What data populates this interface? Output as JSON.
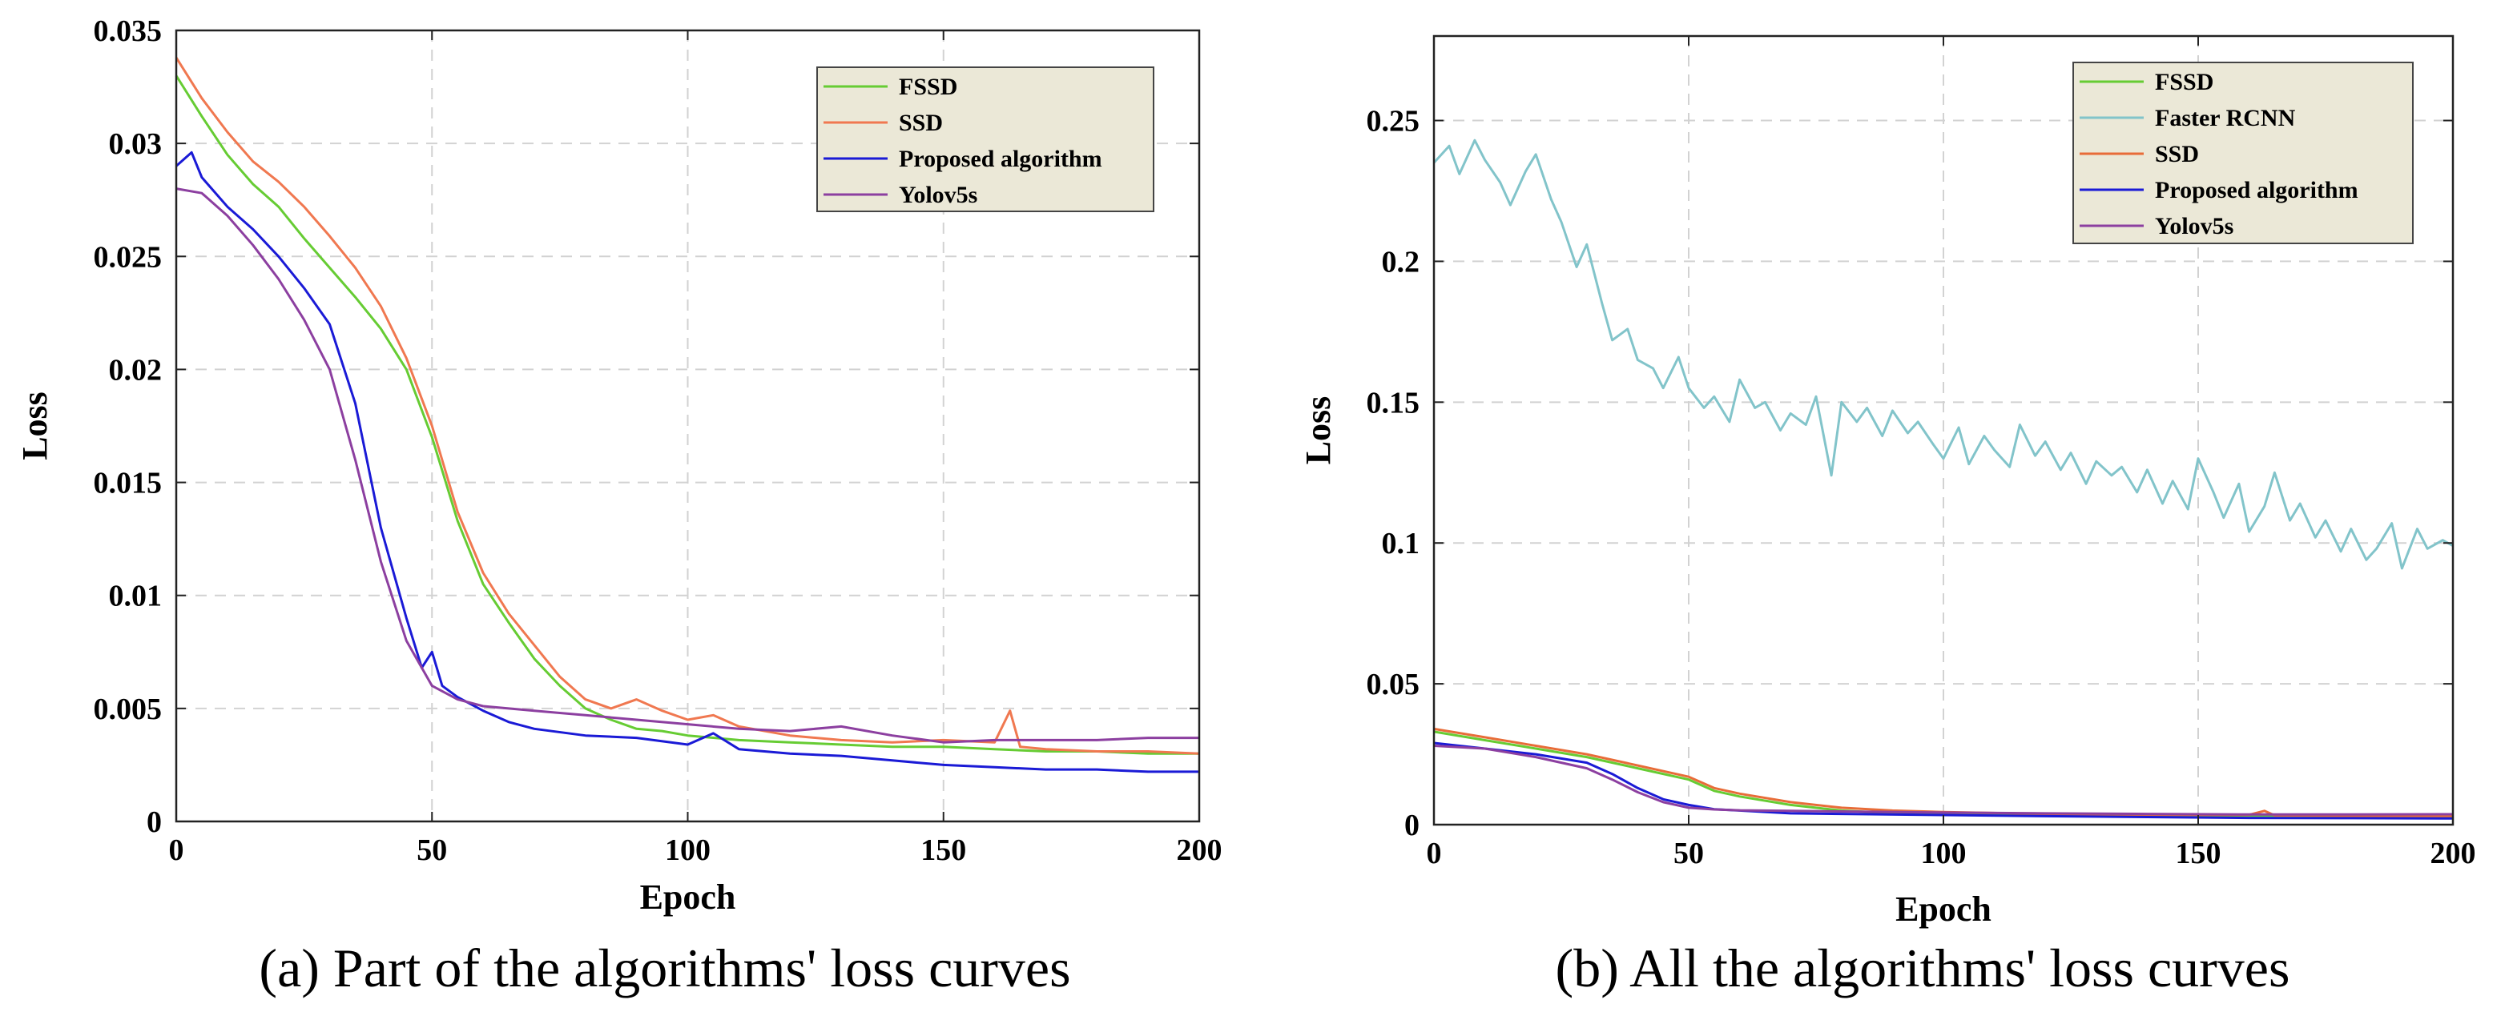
{
  "chart_data": [
    {
      "type": "line",
      "caption": "(a) Part of the algorithms' loss curves",
      "xlabel": "Epoch",
      "ylabel": "Loss",
      "xlim": [
        0,
        200
      ],
      "ylim": [
        0,
        0.035
      ],
      "xticks": [
        0,
        50,
        100,
        150,
        200
      ],
      "xtick_labels": [
        "0",
        "50",
        "100",
        "150",
        "200"
      ],
      "yticks": [
        0,
        0.005,
        0.01,
        0.015,
        0.02,
        0.025,
        0.03,
        0.035
      ],
      "ytick_labels": [
        "0",
        "0.005",
        "0.01",
        "0.015",
        "0.02",
        "0.025",
        "0.03",
        "0.035"
      ],
      "grid": true,
      "legend_position": "top-right",
      "series": [
        {
          "name": "FSSD",
          "color": "#66cc33",
          "x": [
            0,
            5,
            10,
            15,
            20,
            25,
            30,
            35,
            40,
            45,
            50,
            55,
            60,
            65,
            70,
            75,
            80,
            85,
            90,
            95,
            100,
            110,
            120,
            130,
            140,
            150,
            160,
            170,
            180,
            190,
            200
          ],
          "y": [
            0.033,
            0.0312,
            0.0295,
            0.0282,
            0.0272,
            0.0258,
            0.0245,
            0.0232,
            0.0218,
            0.02,
            0.017,
            0.0133,
            0.0105,
            0.0088,
            0.0072,
            0.006,
            0.005,
            0.0045,
            0.0041,
            0.004,
            0.0038,
            0.0036,
            0.0035,
            0.0034,
            0.0033,
            0.0033,
            0.0032,
            0.0031,
            0.0031,
            0.003,
            0.003
          ]
        },
        {
          "name": "SSD",
          "color": "#f07850",
          "x": [
            0,
            5,
            10,
            15,
            20,
            25,
            30,
            35,
            40,
            45,
            50,
            55,
            60,
            65,
            70,
            75,
            80,
            85,
            90,
            95,
            100,
            105,
            110,
            120,
            130,
            140,
            150,
            160,
            163,
            165,
            170,
            180,
            190,
            200
          ],
          "y": [
            0.0338,
            0.032,
            0.0305,
            0.0292,
            0.0283,
            0.0272,
            0.0259,
            0.0245,
            0.0228,
            0.0205,
            0.0175,
            0.0137,
            0.011,
            0.0092,
            0.0078,
            0.0064,
            0.0054,
            0.005,
            0.0054,
            0.0049,
            0.0045,
            0.0047,
            0.0042,
            0.0038,
            0.0036,
            0.0035,
            0.0036,
            0.0035,
            0.0049,
            0.0033,
            0.0032,
            0.0031,
            0.0031,
            0.003
          ]
        },
        {
          "name": "Proposed algorithm",
          "color": "#1a1ad6",
          "x": [
            0,
            3,
            5,
            10,
            15,
            20,
            25,
            30,
            35,
            40,
            45,
            48,
            50,
            52,
            55,
            60,
            65,
            70,
            80,
            90,
            100,
            105,
            110,
            120,
            130,
            140,
            150,
            160,
            170,
            180,
            190,
            200
          ],
          "y": [
            0.029,
            0.0296,
            0.0285,
            0.0272,
            0.0262,
            0.025,
            0.0236,
            0.022,
            0.0185,
            0.013,
            0.009,
            0.0068,
            0.0075,
            0.006,
            0.0055,
            0.0049,
            0.0044,
            0.0041,
            0.0038,
            0.0037,
            0.0034,
            0.0039,
            0.0032,
            0.003,
            0.0029,
            0.0027,
            0.0025,
            0.0024,
            0.0023,
            0.0023,
            0.0022,
            0.0022
          ]
        },
        {
          "name": "Yolov5s",
          "color": "#8c3fa0",
          "x": [
            0,
            5,
            10,
            15,
            20,
            25,
            30,
            35,
            40,
            45,
            50,
            55,
            60,
            65,
            70,
            80,
            90,
            100,
            110,
            120,
            130,
            140,
            150,
            160,
            170,
            180,
            190,
            200
          ],
          "y": [
            0.028,
            0.0278,
            0.0268,
            0.0255,
            0.024,
            0.0222,
            0.02,
            0.016,
            0.0115,
            0.008,
            0.006,
            0.0054,
            0.0051,
            0.005,
            0.0049,
            0.0047,
            0.0045,
            0.0043,
            0.0041,
            0.004,
            0.0042,
            0.0038,
            0.0035,
            0.0036,
            0.0036,
            0.0036,
            0.0037,
            0.0037
          ]
        }
      ]
    },
    {
      "type": "line",
      "caption": "(b) All the algorithms' loss curves",
      "xlabel": "Epoch",
      "ylabel": "Loss",
      "xlim": [
        0,
        200
      ],
      "ylim": [
        0,
        0.28
      ],
      "xticks": [
        0,
        50,
        100,
        150,
        200
      ],
      "xtick_labels": [
        "0",
        "50",
        "100",
        "150",
        "200"
      ],
      "yticks": [
        0,
        0.05,
        0.1,
        0.15,
        0.2,
        0.25
      ],
      "ytick_labels": [
        "0",
        "0.05",
        "0.1",
        "0.15",
        "0.2",
        "0.25"
      ],
      "grid": true,
      "legend_position": "top-right",
      "series": [
        {
          "name": "FSSD",
          "color": "#66cc33",
          "x": [
            0,
            10,
            20,
            30,
            40,
            50,
            55,
            60,
            70,
            80,
            90,
            100,
            120,
            140,
            160,
            180,
            200
          ],
          "y": [
            0.033,
            0.03,
            0.027,
            0.024,
            0.02,
            0.016,
            0.012,
            0.01,
            0.007,
            0.005,
            0.004,
            0.004,
            0.0035,
            0.0033,
            0.0032,
            0.0031,
            0.003
          ]
        },
        {
          "name": "Faster RCNN",
          "color": "#82c4ca",
          "x": [
            0,
            3,
            5,
            8,
            10,
            13,
            15,
            18,
            20,
            23,
            25,
            28,
            30,
            33,
            35,
            38,
            40,
            43,
            45,
            48,
            50,
            53,
            55,
            58,
            60,
            63,
            65,
            68,
            70,
            73,
            75,
            78,
            80,
            83,
            85,
            88,
            90,
            93,
            95,
            98,
            100,
            103,
            105,
            108,
            110,
            113,
            115,
            118,
            120,
            123,
            125,
            128,
            130,
            133,
            135,
            138,
            140,
            143,
            145,
            148,
            150,
            153,
            155,
            158,
            160,
            163,
            165,
            168,
            170,
            173,
            175,
            178,
            180,
            183,
            185,
            188,
            190,
            193,
            195,
            198,
            200
          ],
          "y": [
            0.235,
            0.241,
            0.231,
            0.243,
            0.236,
            0.228,
            0.22,
            0.232,
            0.238,
            0.222,
            0.214,
            0.198,
            0.206,
            0.185,
            0.172,
            0.176,
            0.165,
            0.162,
            0.155,
            0.166,
            0.155,
            0.148,
            0.152,
            0.143,
            0.158,
            0.148,
            0.15,
            0.14,
            0.146,
            0.142,
            0.152,
            0.124,
            0.15,
            0.143,
            0.148,
            0.138,
            0.147,
            0.139,
            0.143,
            0.135,
            0.13,
            0.141,
            0.128,
            0.138,
            0.133,
            0.127,
            0.142,
            0.131,
            0.136,
            0.126,
            0.132,
            0.121,
            0.129,
            0.124,
            0.127,
            0.118,
            0.126,
            0.114,
            0.122,
            0.112,
            0.13,
            0.118,
            0.109,
            0.121,
            0.104,
            0.113,
            0.125,
            0.108,
            0.114,
            0.102,
            0.108,
            0.097,
            0.105,
            0.094,
            0.098,
            0.107,
            0.091,
            0.105,
            0.098,
            0.101,
            0.099
          ]
        },
        {
          "name": "SSD",
          "color": "#e86c38",
          "x": [
            0,
            10,
            20,
            30,
            40,
            50,
            55,
            60,
            70,
            80,
            90,
            100,
            120,
            140,
            160,
            163,
            165,
            180,
            200
          ],
          "y": [
            0.034,
            0.031,
            0.028,
            0.025,
            0.021,
            0.017,
            0.013,
            0.011,
            0.008,
            0.006,
            0.005,
            0.0045,
            0.0038,
            0.0035,
            0.0035,
            0.0049,
            0.0033,
            0.0031,
            0.003
          ]
        },
        {
          "name": "Proposed algorithm",
          "color": "#1a1ad6",
          "x": [
            0,
            10,
            20,
            30,
            35,
            40,
            45,
            50,
            55,
            60,
            70,
            80,
            100,
            120,
            140,
            160,
            180,
            200
          ],
          "y": [
            0.029,
            0.027,
            0.025,
            0.022,
            0.018,
            0.013,
            0.009,
            0.007,
            0.0055,
            0.005,
            0.004,
            0.0038,
            0.0034,
            0.003,
            0.0027,
            0.0024,
            0.0023,
            0.0022
          ]
        },
        {
          "name": "Yolov5s",
          "color": "#8c3fa0",
          "x": [
            0,
            10,
            20,
            30,
            35,
            40,
            45,
            50,
            55,
            60,
            70,
            80,
            100,
            120,
            140,
            160,
            180,
            200
          ],
          "y": [
            0.028,
            0.027,
            0.024,
            0.02,
            0.016,
            0.0115,
            0.008,
            0.006,
            0.0054,
            0.0051,
            0.0049,
            0.0047,
            0.0043,
            0.004,
            0.0038,
            0.0036,
            0.0036,
            0.0037
          ]
        }
      ]
    }
  ]
}
